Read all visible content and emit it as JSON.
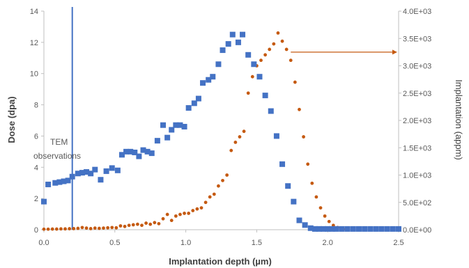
{
  "chart_data": {
    "type": "scatter",
    "xlabel": "Implantation depth (µm)",
    "ylabel": "Dose (dpa)",
    "y2label": "Implantation (appm)",
    "xlim": [
      0,
      2.5
    ],
    "ylim": [
      0,
      14
    ],
    "y2lim": [
      0,
      4000
    ],
    "x_ticks": [
      "0.0",
      "0.5",
      "1.0",
      "1.5",
      "2.0",
      "2.5"
    ],
    "x_tick_values": [
      0,
      0.5,
      1.0,
      1.5,
      2.0,
      2.5
    ],
    "y_ticks": [
      "0",
      "2",
      "4",
      "6",
      "8",
      "10",
      "12",
      "14"
    ],
    "y_tick_values": [
      0,
      2,
      4,
      6,
      8,
      10,
      12,
      14
    ],
    "y2_ticks": [
      "0.0E+00",
      "5.0E+02",
      "1.0E+03",
      "1.5E+03",
      "2.0E+03",
      "2.5E+03",
      "3.0E+03",
      "3.5E+03",
      "4.0E+03"
    ],
    "y2_tick_values": [
      0,
      500,
      1000,
      1500,
      2000,
      2500,
      3000,
      3500,
      4000
    ],
    "grid": false,
    "annotations": [
      {
        "text": "TEM",
        "line": 1
      },
      {
        "text": "observations",
        "line": 2
      }
    ],
    "reference_line": {
      "x": 0.2
    },
    "series": [
      {
        "axis": "left",
        "color": "#4472c4",
        "marker": "square",
        "x": [
          0.0,
          0.03,
          0.08,
          0.11,
          0.14,
          0.17,
          0.2,
          0.24,
          0.27,
          0.3,
          0.33,
          0.36,
          0.4,
          0.44,
          0.48,
          0.52,
          0.55,
          0.58,
          0.61,
          0.64,
          0.67,
          0.7,
          0.73,
          0.76,
          0.8,
          0.84,
          0.87,
          0.9,
          0.93,
          0.96,
          0.99,
          1.02,
          1.06,
          1.09,
          1.12,
          1.16,
          1.19,
          1.23,
          1.26,
          1.3,
          1.33,
          1.37,
          1.4,
          1.44,
          1.48,
          1.52,
          1.56,
          1.6,
          1.64,
          1.68,
          1.72,
          1.76,
          1.8,
          1.84,
          1.88,
          1.91,
          1.94,
          1.97,
          2.0,
          2.03,
          2.06,
          2.1,
          2.14,
          2.18,
          2.22,
          2.26,
          2.3,
          2.34,
          2.38,
          2.42,
          2.46,
          2.5
        ],
        "y": [
          1.8,
          2.9,
          3.0,
          3.05,
          3.1,
          3.15,
          3.4,
          3.6,
          3.65,
          3.7,
          3.6,
          3.85,
          3.2,
          3.75,
          3.95,
          3.8,
          4.8,
          5.0,
          5.0,
          4.95,
          4.7,
          5.1,
          5.0,
          4.9,
          5.7,
          6.7,
          5.9,
          6.4,
          6.7,
          6.7,
          6.6,
          7.8,
          8.1,
          8.4,
          9.4,
          9.6,
          9.8,
          10.6,
          11.5,
          11.9,
          12.5,
          12.0,
          12.5,
          11.2,
          10.6,
          9.8,
          8.6,
          7.6,
          6.0,
          4.2,
          2.8,
          1.8,
          0.6,
          0.3,
          0.1,
          0.05,
          0.05,
          0.05,
          0.05,
          0.05,
          0.05,
          0.05,
          0.05,
          0.05,
          0.05,
          0.05,
          0.05,
          0.05,
          0.05,
          0.05,
          0.05,
          0.05
        ]
      },
      {
        "axis": "right",
        "color": "#c55a11",
        "marker": "circle",
        "x": [
          0.0,
          0.03,
          0.06,
          0.09,
          0.12,
          0.15,
          0.18,
          0.21,
          0.24,
          0.27,
          0.3,
          0.33,
          0.36,
          0.39,
          0.42,
          0.45,
          0.48,
          0.51,
          0.54,
          0.57,
          0.6,
          0.63,
          0.66,
          0.69,
          0.72,
          0.75,
          0.78,
          0.81,
          0.84,
          0.87,
          0.9,
          0.93,
          0.96,
          0.99,
          1.02,
          1.05,
          1.08,
          1.11,
          1.14,
          1.17,
          1.2,
          1.23,
          1.26,
          1.29,
          1.32,
          1.35,
          1.38,
          1.41,
          1.44,
          1.47,
          1.5,
          1.53,
          1.56,
          1.59,
          1.62,
          1.65,
          1.68,
          1.71,
          1.74,
          1.77,
          1.8,
          1.83,
          1.86,
          1.89,
          1.92,
          1.95,
          1.98,
          2.01,
          2.04,
          2.07,
          2.1,
          2.13
        ],
        "y": [
          10,
          10,
          12,
          12,
          15,
          15,
          18,
          20,
          25,
          40,
          30,
          20,
          30,
          25,
          30,
          35,
          40,
          35,
          70,
          60,
          80,
          90,
          100,
          80,
          120,
          100,
          130,
          110,
          200,
          280,
          170,
          250,
          280,
          300,
          300,
          350,
          380,
          400,
          500,
          600,
          650,
          800,
          900,
          1000,
          1450,
          1600,
          1700,
          1800,
          2500,
          2800,
          3000,
          3100,
          3200,
          3300,
          3400,
          3600,
          3450,
          3300,
          3100,
          2700,
          2200,
          1700,
          1200,
          850,
          600,
          400,
          250,
          150,
          80,
          40,
          20,
          10
        ]
      }
    ]
  }
}
